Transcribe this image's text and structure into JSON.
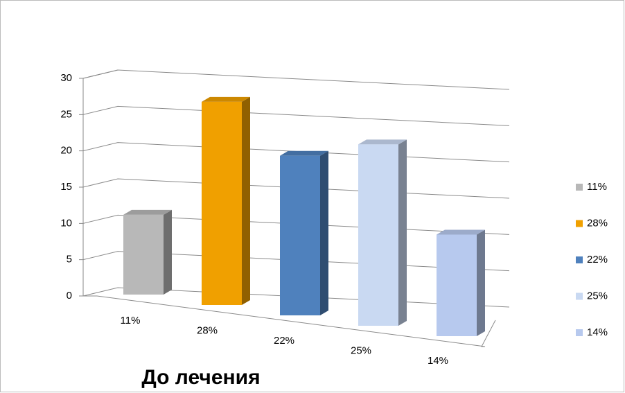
{
  "chart_data": {
    "type": "bar3d",
    "title": "До лечения",
    "categories": [
      "11%",
      "28%",
      "22%",
      "25%",
      "14%"
    ],
    "values": [
      11,
      28,
      22,
      25,
      14
    ],
    "colors": [
      "#b8b8b8",
      "#f0a000",
      "#4f81bd",
      "#c9d9f2",
      "#b7c9ee"
    ],
    "ylim": [
      0,
      30
    ],
    "yticks": [
      0,
      5,
      10,
      15,
      20,
      25,
      30
    ],
    "grid": true,
    "legend": "right"
  }
}
